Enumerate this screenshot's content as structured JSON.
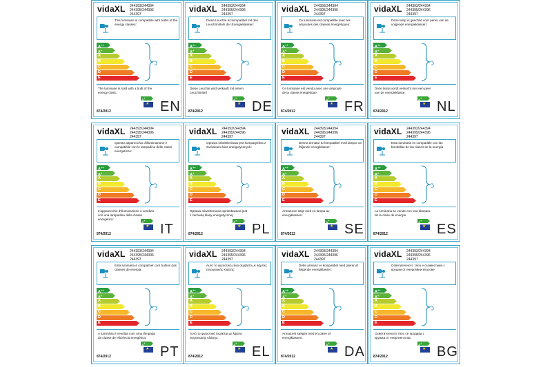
{
  "brand": "vidaXL",
  "codes": "244393/244394\n244395/244396\n244397",
  "regulation": "874/2012",
  "classes": [
    {
      "label": "A",
      "sup": "++",
      "color": "#2a9c3b"
    },
    {
      "label": "A",
      "sup": "+",
      "color": "#5db33a"
    },
    {
      "label": "A",
      "sup": "",
      "color": "#b6cc2e"
    },
    {
      "label": "B",
      "sup": "",
      "color": "#f2e82d"
    },
    {
      "label": "C",
      "sup": "",
      "color": "#f6b72a"
    },
    {
      "label": "D",
      "sup": "",
      "color": "#ee7a24"
    },
    {
      "label": "E",
      "sup": "",
      "color": "#e3262a"
    }
  ],
  "badge": {
    "label": "A",
    "sup": "+"
  },
  "labels": [
    {
      "lang": "EN",
      "top": "This luminaire is compatible with bulbs of the energy classes:",
      "bottom": "The luminaire is sold with a bulb of the energy class:"
    },
    {
      "lang": "DE",
      "top": "Diese Leuchte ist kompatibel mit den Leuchtmitteln der Energieklassen:",
      "bottom": "Diese Leuchte wird verkauft mit einem Leuchtmittel"
    },
    {
      "lang": "FR",
      "top": "Ce luminaire est compatible avec les ampoules des classes énergétiques:",
      "bottom": "Ce luminaire est vendu avec une ampoule de la classe énergétique:"
    },
    {
      "lang": "NL",
      "top": "Deze lamp is geschikt voor peren van de volgende energieklassen:",
      "bottom": "Deze lamp wordt verkocht met een peer van de energieklasse:"
    },
    {
      "lang": "IT",
      "top": "Questo apparecchio d'illuminazione è compatibile con le lampadine delle classi energetiche:",
      "bottom": "L'apparecchio d'illuminazione è venduto con una lampadina della classe energetica:"
    },
    {
      "lang": "PL",
      "top": "Oprawa oświetleniowa jest kompatybilna z żarówkami klas energetycznych:",
      "bottom": "Oprawa oświetleniowa sprzedawana jest z żarówką klasy energetycznej:"
    },
    {
      "lang": "SE",
      "top": "Denna armatur är kompatibel med lampor av följande energiklasser:",
      "bottom": "Armaturen säljs med en lampa av energiklassen:"
    },
    {
      "lang": "ES",
      "top": "Esta luminaria es compatible con las bombillas de las clases de la energía",
      "bottom": "La luminaria se vende con una lámpara de la clase de energía"
    },
    {
      "lang": "PT",
      "top": "Esta luminária é compatível com bulbos das classes de energia:",
      "bottom": "A luminária é vendida com uma lâmpada da classe de eficiência energética:"
    },
    {
      "lang": "EL",
      "top": "Αυτό το φωτιστικό είναι συμβατό με λάμπες ενεργειακής κλάσης:",
      "bottom": "Αυτό το φωτιστικό πωλείται με λάμπα ενεργειακής κλάσης:"
    },
    {
      "lang": "DA",
      "top": "Dette armatur er kompatibel med pærer af følgende energiklasser:",
      "bottom": "Armaturet sælges med en pære af energiklassen:"
    },
    {
      "lang": "BG",
      "top": "Осветителното тяло е съвместимо с крушки от енергийни класове",
      "bottom": "Осветителното тяло се продава с крушка от енергиен клас"
    }
  ]
}
